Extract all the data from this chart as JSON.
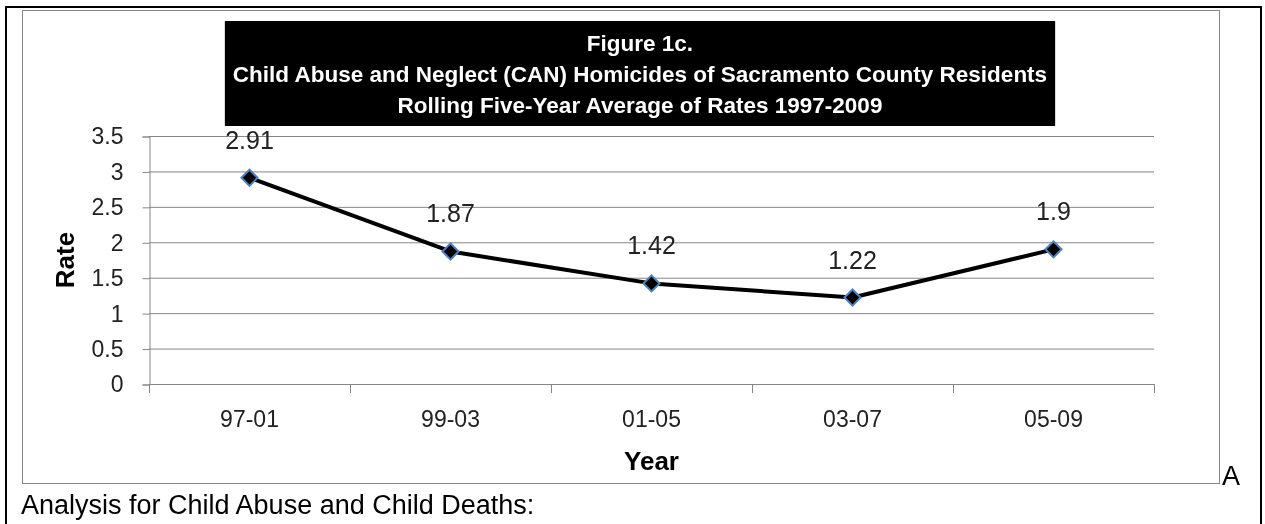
{
  "chart_data": {
    "type": "line",
    "title": "Figure 1c.\nChild Abuse and Neglect (CAN) Homicides of Sacramento County Residents\nRolling Five-Year Average of Rates 1997-2009",
    "xlabel": "Year",
    "ylabel": "Rate",
    "categories": [
      "97-01",
      "99-03",
      "01-05",
      "03-07",
      "05-09"
    ],
    "series": [
      {
        "color": "#000000",
        "values": [
          2.91,
          1.87,
          1.42,
          1.22,
          1.9
        ]
      }
    ],
    "ylim": [
      0,
      3.5
    ],
    "yticks": [
      0,
      0.5,
      1,
      1.5,
      2,
      2.5,
      3,
      3.5
    ],
    "grid": "y",
    "marker": "diamond",
    "data_labels": true,
    "annotations": [
      "A",
      "Analysis for Child Abuse and Child Deaths:"
    ]
  }
}
